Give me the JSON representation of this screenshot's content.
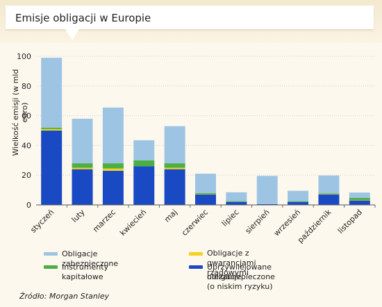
{
  "title": "Emisje obligacji w Europie",
  "source": "Źródło: Morgan Stanley",
  "colors": {
    "covered": "#9ec4e4",
    "equity": "#4caf45",
    "guaranteed": "#f4d21e",
    "senior": "#1a49c4"
  },
  "chart_data": {
    "type": "bar",
    "stacked": true,
    "title": "Emisje obligacji w Europie",
    "xlabel": "",
    "ylabel": "Wielkość emisji (w mld euro)",
    "ylim": [
      0,
      100
    ],
    "yticks": [
      0,
      20,
      40,
      60,
      80,
      100
    ],
    "grid": true,
    "legend_position": "bottom",
    "categories": [
      "styczeń",
      "luty",
      "marzec",
      "kwiecień",
      "maj",
      "czerwiec",
      "lipiec",
      "sierpień",
      "wrzesień",
      "październik",
      "listopad"
    ],
    "series": [
      {
        "name": "Uprzywilejowane obligacje niezabezpieczone (o niskim ryzyku)",
        "key": "senior",
        "values": [
          50,
          24,
          23,
          26,
          24,
          7,
          2,
          0.5,
          2,
          7,
          3
        ]
      },
      {
        "name": "Obligacje z gwarancjami rządowymi",
        "key": "guaranteed",
        "values": [
          1,
          1,
          1.5,
          0,
          1,
          0.3,
          0,
          0,
          0,
          0.3,
          0.3
        ]
      },
      {
        "name": "Instrumenty kapitałowe",
        "key": "equity",
        "values": [
          1,
          3,
          3.5,
          4,
          3,
          0.7,
          0.5,
          0,
          0.5,
          0.5,
          1.5
        ]
      },
      {
        "name": "Obligacje zabezpieczone",
        "key": "covered",
        "values": [
          47,
          30,
          37.5,
          13.5,
          25,
          13,
          6,
          19,
          7,
          12,
          3.5
        ]
      }
    ]
  },
  "legend": {
    "covered": "Obligacje zabezpieczone",
    "equity": "Instrumenty kapitałowe",
    "guaranteed": "Obligacje z gwarancjami rządowymi",
    "senior_line1": "Uprzywilejowane obligacje",
    "senior_line2": "niezabezpieczone (o niskim ryzyku)"
  }
}
